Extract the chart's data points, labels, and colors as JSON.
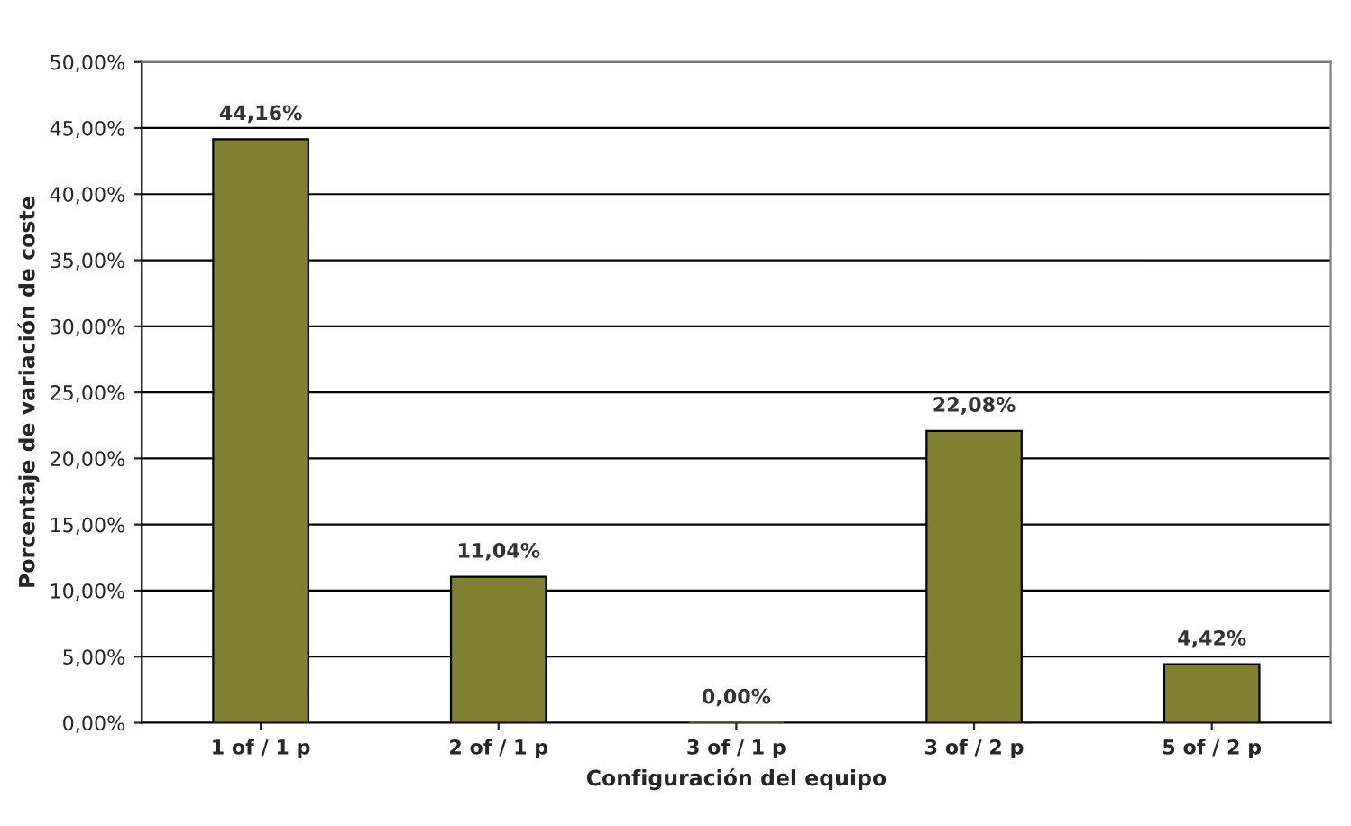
{
  "chart_data": {
    "type": "bar",
    "xlabel": "Configuración del equipo",
    "ylabel": "Porcentaje de variación de coste",
    "categories": [
      "1 of / 1 p",
      "2 of / 1 p",
      "3 of / 1 p",
      "3 of / 2 p",
      "5 of / 2 p"
    ],
    "values": [
      44.16,
      11.04,
      0.0,
      22.08,
      4.42
    ],
    "value_labels": [
      "44,16%",
      "11,04%",
      "0,00%",
      "22,08%",
      "4,42%"
    ],
    "color": "#808033",
    "ylim": [
      0,
      50
    ],
    "yticks": [
      {
        "value": 0,
        "label": "0,00%"
      },
      {
        "value": 5,
        "label": "5,00%"
      },
      {
        "value": 10,
        "label": "10,00%"
      },
      {
        "value": 15,
        "label": "15,00%"
      },
      {
        "value": 20,
        "label": "20,00%"
      },
      {
        "value": 25,
        "label": "25,00%"
      },
      {
        "value": 30,
        "label": "30,00%"
      },
      {
        "value": 35,
        "label": "35,00%"
      },
      {
        "value": 40,
        "label": "40,00%"
      },
      {
        "value": 45,
        "label": "45,00%"
      },
      {
        "value": 50,
        "label": "50,00%"
      }
    ],
    "grid": "y",
    "legend": false
  }
}
